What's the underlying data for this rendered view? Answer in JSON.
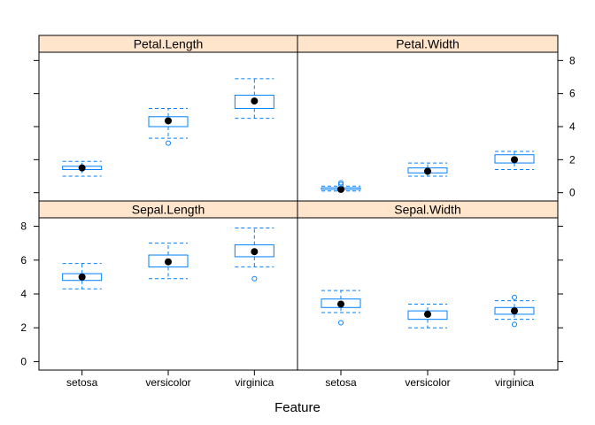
{
  "chart_data": {
    "type": "box",
    "xlabel": "Feature",
    "ylabel": "",
    "categories": [
      "setosa",
      "versicolor",
      "virginica"
    ],
    "ylim": [
      -0.5,
      8.5
    ],
    "yticks": [
      0,
      2,
      4,
      6,
      8
    ],
    "colors": {
      "strip_bg": "#ffe5cc",
      "box": "#0080ff",
      "median_dot": "#000000",
      "frame": "#000000"
    },
    "panels": [
      {
        "name": "Petal.Length",
        "stats": [
          {
            "category": "setosa",
            "whisker_low": 1.0,
            "q1": 1.4,
            "median": 1.5,
            "q3": 1.6,
            "whisker_high": 1.9,
            "outliers": []
          },
          {
            "category": "versicolor",
            "whisker_low": 3.3,
            "q1": 4.0,
            "median": 4.35,
            "q3": 4.6,
            "whisker_high": 5.1,
            "outliers": [
              3.0
            ]
          },
          {
            "category": "virginica",
            "whisker_low": 4.5,
            "q1": 5.1,
            "median": 5.55,
            "q3": 5.9,
            "whisker_high": 6.9,
            "outliers": []
          }
        ]
      },
      {
        "name": "Petal.Width",
        "stats": [
          {
            "category": "setosa",
            "whisker_low": 0.1,
            "q1": 0.2,
            "median": 0.2,
            "q3": 0.3,
            "whisker_high": 0.4,
            "outliers": [
              0.5,
              0.6
            ]
          },
          {
            "category": "versicolor",
            "whisker_low": 1.0,
            "q1": 1.2,
            "median": 1.3,
            "q3": 1.5,
            "whisker_high": 1.8,
            "outliers": []
          },
          {
            "category": "virginica",
            "whisker_low": 1.4,
            "q1": 1.8,
            "median": 2.0,
            "q3": 2.3,
            "whisker_high": 2.5,
            "outliers": []
          }
        ]
      },
      {
        "name": "Sepal.Length",
        "stats": [
          {
            "category": "setosa",
            "whisker_low": 4.3,
            "q1": 4.8,
            "median": 5.0,
            "q3": 5.2,
            "whisker_high": 5.8,
            "outliers": []
          },
          {
            "category": "versicolor",
            "whisker_low": 4.9,
            "q1": 5.6,
            "median": 5.9,
            "q3": 6.3,
            "whisker_high": 7.0,
            "outliers": []
          },
          {
            "category": "virginica",
            "whisker_low": 5.6,
            "q1": 6.2,
            "median": 6.5,
            "q3": 6.9,
            "whisker_high": 7.9,
            "outliers": [
              4.9
            ]
          }
        ]
      },
      {
        "name": "Sepal.Width",
        "stats": [
          {
            "category": "setosa",
            "whisker_low": 2.9,
            "q1": 3.2,
            "median": 3.4,
            "q3": 3.7,
            "whisker_high": 4.2,
            "outliers": [
              2.3
            ]
          },
          {
            "category": "versicolor",
            "whisker_low": 2.0,
            "q1": 2.5,
            "median": 2.8,
            "q3": 3.0,
            "whisker_high": 3.4,
            "outliers": []
          },
          {
            "category": "virginica",
            "whisker_low": 2.5,
            "q1": 2.8,
            "median": 3.0,
            "q3": 3.2,
            "whisker_high": 3.6,
            "outliers": [
              2.2,
              3.8
            ]
          }
        ]
      }
    ]
  }
}
